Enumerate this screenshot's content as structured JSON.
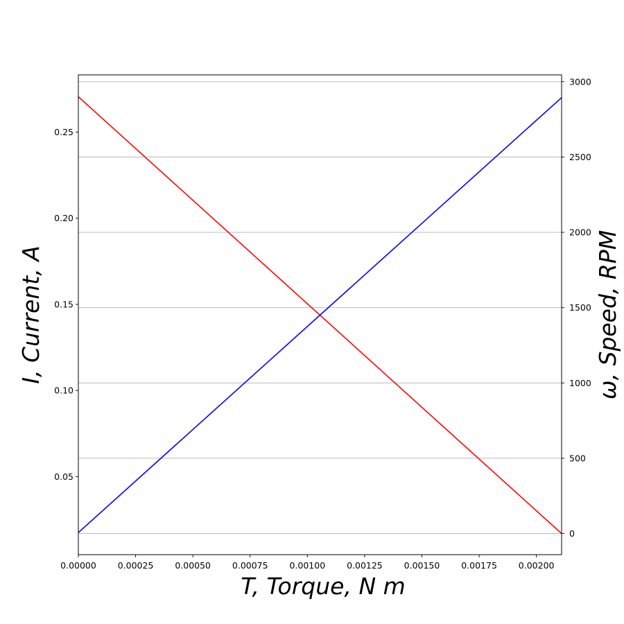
{
  "chart_data": {
    "type": "line",
    "xlabel": "T,  Torque,  N m",
    "ylabel_left": "I,  Current,  A",
    "ylabel_right": "ω,  Speed,  RPM",
    "xlim": [
      0,
      0.00211
    ],
    "ylim_left": [
      0.0047,
      0.2832
    ],
    "ylim_right": [
      -140,
      3045
    ],
    "x_ticks": [
      0,
      0.00025,
      0.0005,
      0.00075,
      0.001,
      0.00125,
      0.0015,
      0.00175,
      0.002
    ],
    "x_tick_labels": [
      "0.00000",
      "0.00025",
      "0.00050",
      "0.00075",
      "0.00100",
      "0.00125",
      "0.00150",
      "0.00175",
      "0.00200"
    ],
    "y_left_ticks": [
      0.05,
      0.1,
      0.15,
      0.2,
      0.25
    ],
    "y_left_tick_labels": [
      "0.05",
      "0.10",
      "0.15",
      "0.20",
      "0.25"
    ],
    "y_right_ticks": [
      0,
      500,
      1000,
      1500,
      2000,
      2500,
      3000
    ],
    "y_right_tick_labels": [
      "0",
      "500",
      "1000",
      "1500",
      "2000",
      "2500",
      "3000"
    ],
    "grid": "right-axis horizontal",
    "series": [
      {
        "axis": "right",
        "color": "#ff0000",
        "x": [
          0,
          0.00211
        ],
        "values": [
          2900,
          0
        ]
      },
      {
        "axis": "left",
        "color": "#0000ff",
        "x": [
          0,
          0.00211
        ],
        "values": [
          0.0175,
          0.27
        ]
      }
    ]
  }
}
